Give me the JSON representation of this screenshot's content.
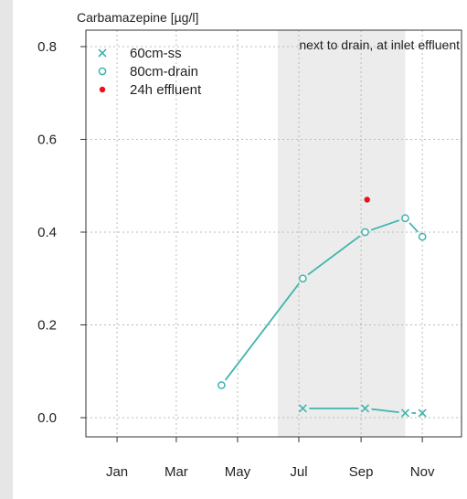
{
  "chart_data": {
    "type": "line",
    "title": "Carbamazepine [µg/l]",
    "annotation": "next to drain, at inlet effluent",
    "xlabel": "",
    "ylabel": "",
    "x_ticks": [
      "Jan",
      "Mar",
      "May",
      "Jul",
      "Sep",
      "Nov"
    ],
    "xlim": [
      "2012-12-01",
      "2013-12-10"
    ],
    "ylim": [
      0.0,
      0.8
    ],
    "y_ticks": [
      0.0,
      0.2,
      0.4,
      0.6,
      0.8
    ],
    "y_tick_labels": [
      "0.0",
      "0.2",
      "0.4",
      "0.6",
      "0.8"
    ],
    "grid": true,
    "legend_position": "top-left",
    "shaded_period": [
      "2013-06-10",
      "2013-10-15"
    ],
    "series": [
      {
        "name": "60cm-ss",
        "marker": "x",
        "color": "#3fb5ad",
        "connected": true,
        "points": [
          {
            "x": "2013-07-05",
            "y": 0.02
          },
          {
            "x": "2013-09-05",
            "y": 0.02
          },
          {
            "x": "2013-10-15",
            "y": 0.01
          },
          {
            "x": "2013-11-01",
            "y": 0.01
          }
        ]
      },
      {
        "name": "80cm-drain",
        "marker": "o",
        "color": "#3fb5ad",
        "connected": true,
        "points": [
          {
            "x": "2013-04-15",
            "y": 0.07
          },
          {
            "x": "2013-07-05",
            "y": 0.3
          },
          {
            "x": "2013-09-05",
            "y": 0.4
          },
          {
            "x": "2013-10-15",
            "y": 0.43
          },
          {
            "x": "2013-11-01",
            "y": 0.39
          }
        ]
      },
      {
        "name": "24h effluent",
        "marker": "dot",
        "color": "#e8101c",
        "connected": false,
        "points": [
          {
            "x": "2013-09-07",
            "y": 0.47
          }
        ]
      }
    ]
  }
}
